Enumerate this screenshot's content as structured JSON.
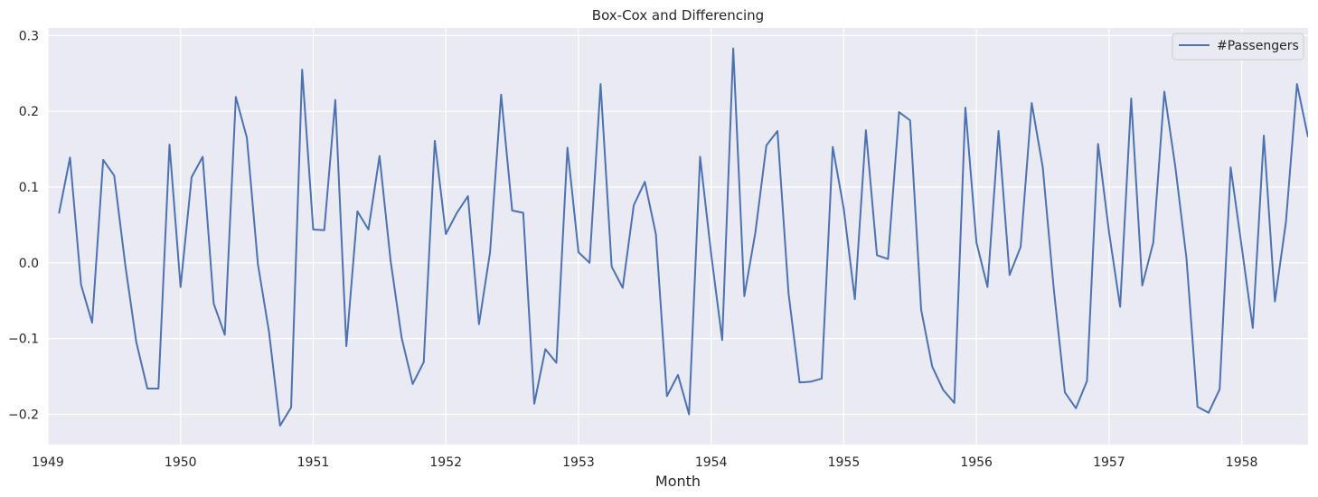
{
  "chart_data": {
    "type": "line",
    "title": "Box-Cox and Differencing",
    "xlabel": "Month",
    "ylabel": "",
    "xlim": [
      "1949-01",
      "1958-07"
    ],
    "ylim": [
      -0.24,
      0.31
    ],
    "x_ticks": [
      "1949",
      "1950",
      "1951",
      "1952",
      "1953",
      "1954",
      "1955",
      "1956",
      "1957",
      "1958"
    ],
    "y_ticks": [
      -0.2,
      -0.1,
      0.0,
      0.1,
      0.2,
      0.3
    ],
    "y_tick_labels": [
      "−0.2",
      "−0.1",
      "0.0",
      "0.1",
      "0.2",
      "0.3"
    ],
    "grid": true,
    "legend_position": "top-right",
    "series": [
      {
        "name": "#Passengers",
        "color": "#4c72b0",
        "start": "1949-02",
        "values": [
          0.065,
          0.139,
          -0.029,
          -0.079,
          0.136,
          0.115,
          -0.003,
          -0.105,
          -0.166,
          -0.166,
          0.156,
          -0.032,
          0.113,
          0.14,
          -0.054,
          -0.095,
          0.219,
          0.165,
          -0.002,
          -0.091,
          -0.215,
          -0.191,
          0.255,
          0.044,
          0.043,
          0.215,
          -0.11,
          0.068,
          0.044,
          0.141,
          0.003,
          -0.099,
          -0.16,
          -0.131,
          0.161,
          0.038,
          0.066,
          0.088,
          -0.081,
          0.014,
          0.222,
          0.069,
          0.066,
          -0.186,
          -0.114,
          -0.132,
          0.152,
          0.014,
          0.0,
          0.236,
          -0.005,
          -0.033,
          0.076,
          0.107,
          0.038,
          -0.176,
          -0.148,
          -0.2,
          0.14,
          0.012,
          -0.102,
          0.283,
          -0.044,
          0.04,
          0.155,
          0.174,
          -0.04,
          -0.158,
          -0.157,
          -0.153,
          0.153,
          0.071,
          -0.048,
          0.175,
          0.01,
          0.005,
          0.199,
          0.188,
          -0.062,
          -0.137,
          -0.168,
          -0.185,
          0.205,
          0.027,
          -0.032,
          0.174,
          -0.016,
          0.021,
          0.211,
          0.126,
          -0.035,
          -0.171,
          -0.192,
          -0.156,
          0.157,
          0.04,
          -0.058,
          0.217,
          -0.03,
          0.027,
          0.226,
          0.126,
          0.006,
          -0.19,
          -0.198,
          -0.167,
          0.126,
          0.021,
          -0.086,
          0.168,
          -0.051,
          0.054,
          0.236,
          0.166
        ]
      }
    ]
  }
}
